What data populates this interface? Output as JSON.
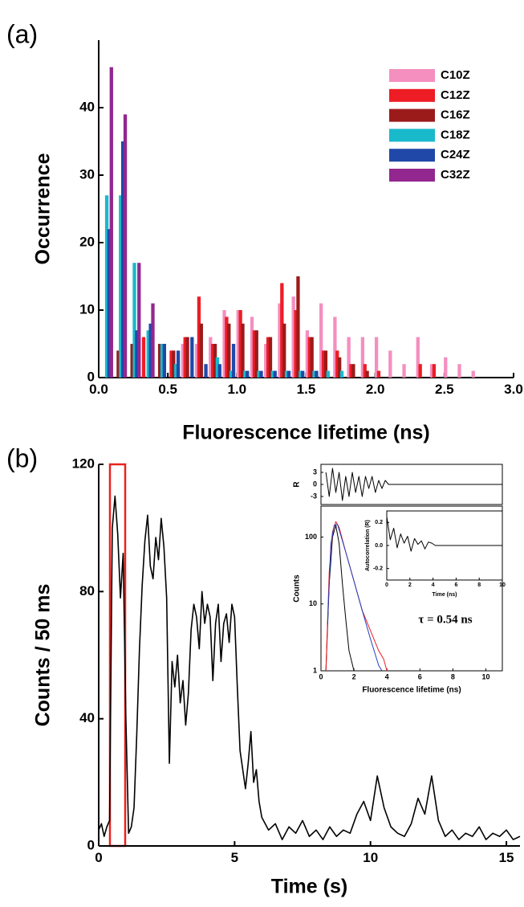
{
  "chart_data": [
    {
      "type": "bar",
      "panel_label": "(a)",
      "x_label": "Fluorescence lifetime (ns)",
      "y_label": "Occurrence",
      "x": [
        0.05,
        0.15,
        0.25,
        0.35,
        0.45,
        0.55,
        0.65,
        0.75,
        0.85,
        0.95,
        1.05,
        1.15,
        1.25,
        1.35,
        1.45,
        1.55,
        1.65,
        1.75,
        1.85,
        1.95,
        2.05,
        2.15,
        2.25,
        2.35,
        2.45,
        2.55,
        2.65,
        2.75
      ],
      "series": [
        {
          "name": "C10Z",
          "color": "#f48fbf",
          "values": [
            0,
            0,
            0,
            0,
            0,
            0,
            5,
            5,
            6,
            10,
            10,
            9,
            5,
            11,
            12,
            7,
            11,
            9,
            6,
            6,
            6,
            4,
            2,
            6,
            2,
            3,
            2,
            1
          ]
        },
        {
          "name": "C12Z",
          "color": "#ee1c25",
          "values": [
            0,
            0,
            0,
            6,
            0,
            4,
            6,
            12,
            5,
            9,
            10,
            7,
            6,
            14,
            10,
            6,
            4,
            4,
            2,
            2,
            1,
            0,
            0,
            2,
            2,
            0,
            0,
            0
          ]
        },
        {
          "name": "C16Z",
          "color": "#9b1b1b",
          "values": [
            0,
            4,
            5,
            0,
            5,
            4,
            6,
            8,
            5,
            8,
            8,
            7,
            6,
            8,
            15,
            6,
            4,
            3,
            2,
            1,
            0,
            0,
            0,
            0,
            0,
            0,
            0,
            0
          ]
        },
        {
          "name": "C18Z",
          "color": "#19b9cc",
          "values": [
            27,
            27,
            17,
            7,
            5,
            2,
            0,
            0,
            3,
            1,
            1,
            1,
            1,
            1,
            1,
            1,
            1,
            1,
            0,
            0,
            0,
            0,
            0,
            0,
            0,
            0,
            0,
            0
          ]
        },
        {
          "name": "C24Z",
          "color": "#2048a8",
          "values": [
            22,
            35,
            7,
            8,
            5,
            4,
            6,
            2,
            2,
            5,
            1,
            1,
            1,
            1,
            1,
            1,
            0,
            0,
            0,
            0,
            0,
            0,
            0,
            0,
            0,
            0,
            0,
            0
          ]
        },
        {
          "name": "C32Z",
          "color": "#92278f",
          "values": [
            46,
            39,
            17,
            11,
            0,
            0,
            0,
            0,
            0,
            0,
            0,
            0,
            0,
            0,
            0,
            0,
            0,
            0,
            0,
            0,
            0,
            0,
            0,
            0,
            0,
            0,
            0,
            0
          ]
        }
      ],
      "xlim": [
        0,
        3
      ],
      "ylim": [
        0,
        50
      ],
      "xticks": [
        {
          "value": 0,
          "label": "0.0"
        },
        0.5,
        {
          "value": 1,
          "label": "1.0"
        },
        1.5,
        {
          "value": 2,
          "label": "2.0"
        },
        2.5,
        {
          "value": 3,
          "label": "3.0"
        }
      ],
      "yticks": [
        0,
        10,
        20,
        30,
        40
      ],
      "legend": "upper right"
    },
    {
      "type": "line",
      "panel_label": "(b)",
      "x_label": "Time (s)",
      "y_label": "Counts / 50 ms",
      "x": [
        0,
        0.1,
        0.2,
        0.3,
        0.4,
        0.5,
        0.6,
        0.7,
        0.8,
        0.9,
        1,
        1.1,
        1.2,
        1.3,
        1.4,
        1.5,
        1.6,
        1.7,
        1.8,
        1.9,
        2,
        2.1,
        2.2,
        2.3,
        2.4,
        2.5,
        2.6,
        2.7,
        2.8,
        2.9,
        3,
        3.1,
        3.2,
        3.3,
        3.4,
        3.5,
        3.6,
        3.7,
        3.8,
        3.9,
        4,
        4.1,
        4.2,
        4.3,
        4.4,
        4.5,
        4.6,
        4.7,
        4.8,
        4.9,
        5,
        5.1,
        5.2,
        5.3,
        5.4,
        5.5,
        5.6,
        5.7,
        5.8,
        5.9,
        6,
        6.25,
        6.5,
        6.75,
        7,
        7.25,
        7.5,
        7.75,
        8,
        8.25,
        8.5,
        8.75,
        9,
        9.25,
        9.5,
        9.75,
        10,
        10.25,
        10.5,
        10.75,
        11,
        11.25,
        11.5,
        11.75,
        12,
        12.25,
        12.5,
        12.75,
        13,
        13.25,
        13.5,
        13.75,
        14,
        14.25,
        14.5,
        14.75,
        15,
        15.25,
        15.5
      ],
      "series": [
        {
          "color": "#000000",
          "values": [
            5,
            7,
            3,
            6,
            8,
            100,
            110,
            98,
            78,
            92,
            40,
            4,
            6,
            12,
            35,
            62,
            82,
            96,
            104,
            88,
            84,
            97,
            90,
            103,
            94,
            78,
            26,
            58,
            50,
            60,
            45,
            52,
            38,
            48,
            68,
            76,
            72,
            62,
            80,
            70,
            76,
            72,
            52,
            70,
            76,
            58,
            70,
            73,
            64,
            76,
            72,
            50,
            30,
            24,
            18,
            26,
            36,
            20,
            24,
            14,
            9,
            5,
            7,
            2,
            6,
            4,
            8,
            3,
            5,
            2,
            6,
            3,
            5,
            4,
            10,
            14,
            8,
            22,
            12,
            6,
            4,
            3,
            7,
            15,
            10,
            22,
            8,
            3,
            5,
            2,
            4,
            3,
            6,
            2,
            4,
            3,
            5,
            2,
            3
          ]
        }
      ],
      "xlim": [
        0,
        15.5
      ],
      "ylim": [
        0,
        120
      ],
      "xticks": [
        0,
        5,
        10,
        15
      ],
      "yticks": [
        0,
        40,
        80,
        120
      ]
    },
    {
      "type": "line",
      "y_label": "R",
      "series": [
        {
          "color": "#000000",
          "x": [
            0.3,
            0.5,
            0.7,
            0.9,
            1.1,
            1.3,
            1.5,
            1.7,
            1.9,
            2.1,
            2.3,
            2.5,
            2.7,
            2.9,
            3.1,
            3.3,
            3.5,
            3.7,
            3.9,
            4.1,
            4.3,
            11
          ],
          "values": [
            3,
            -3,
            4,
            -2,
            3,
            -4,
            2,
            -3,
            3,
            -2,
            2,
            -3,
            2,
            -1,
            2,
            -2,
            1,
            -1,
            1,
            0,
            0,
            0
          ]
        }
      ],
      "xlim": [
        0,
        11
      ],
      "ylim": [
        -5,
        5
      ],
      "yticks": [
        3,
        0,
        -3
      ]
    },
    {
      "type": "line",
      "x_label": "Fluorescence lifetime (ns)",
      "y_label": "Counts",
      "annotation": "τ = 0.54 ns",
      "log_y": true,
      "series": [
        {
          "color": "#000000",
          "x": [
            0.3,
            0.5,
            0.7,
            0.9,
            1.1,
            1.3,
            1.5,
            1.7,
            2.0
          ],
          "values": [
            1,
            20,
            100,
            150,
            80,
            20,
            6,
            2,
            1
          ]
        },
        {
          "color": "#ee1c25",
          "x": [
            0.3,
            0.5,
            0.7,
            0.9,
            1.1,
            1.5,
            2.0,
            2.5,
            3.0,
            3.5,
            3.8,
            4.0
          ],
          "values": [
            1,
            30,
            120,
            170,
            140,
            60,
            22,
            8,
            4,
            2,
            1.5,
            1
          ]
        },
        {
          "color": "#2040c0",
          "x": [
            0.4,
            0.6,
            0.8,
            1.0,
            1.5,
            2.0,
            2.5,
            3.0,
            3.5,
            3.7
          ],
          "values": [
            5,
            80,
            150,
            155,
            60,
            22,
            8,
            3,
            1.2,
            1
          ]
        }
      ],
      "xlim": [
        0,
        11
      ],
      "ylim": [
        1,
        290
      ],
      "xticks": [
        0,
        2,
        4,
        6,
        8,
        10
      ],
      "yticks": [
        1,
        10,
        100
      ]
    },
    {
      "type": "line",
      "x_label": "Time (ns)",
      "y_label": "Autocorrelation (R)",
      "series": [
        {
          "color": "#000000",
          "x": [
            0,
            0.3,
            0.6,
            0.9,
            1.2,
            1.5,
            1.8,
            2.1,
            2.4,
            2.7,
            3.0,
            3.3,
            3.6,
            3.9,
            4.2,
            10
          ],
          "values": [
            0.25,
            0.05,
            0.15,
            -0.02,
            0.1,
            0.02,
            0.08,
            -0.05,
            0.06,
            0.01,
            0.04,
            -0.03,
            0.03,
            0.02,
            0,
            0
          ]
        }
      ],
      "xlim": [
        0,
        10
      ],
      "ylim": [
        -0.3,
        0.3
      ],
      "xticks": [
        0,
        2,
        4,
        6,
        8,
        10
      ],
      "yticks": [
        0.2,
        {
          "value": 0,
          "label": "0.0"
        },
        -0.2
      ]
    }
  ]
}
